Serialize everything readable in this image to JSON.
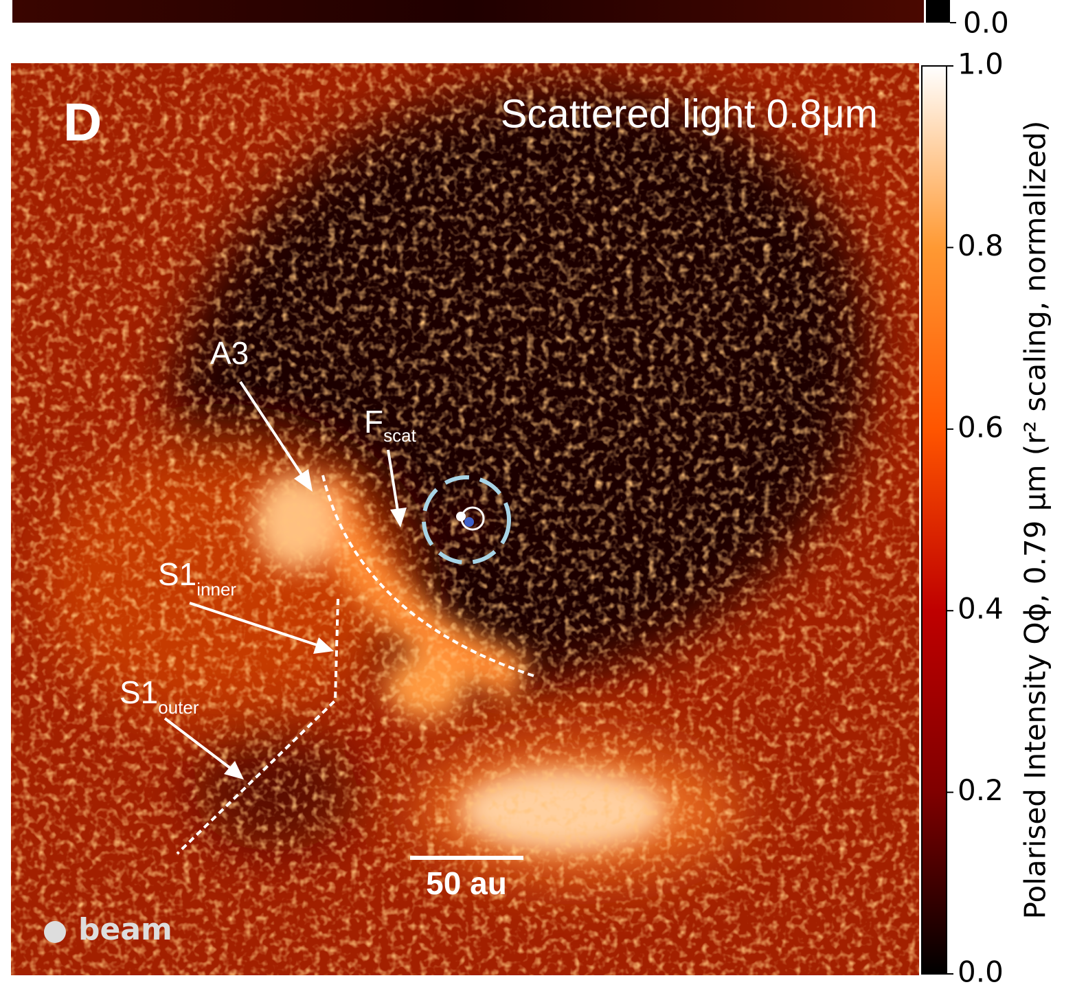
{
  "chart_data": {
    "type": "image",
    "panel_label": "D",
    "title": "Scattered light 0.8μm",
    "colorbar": {
      "label": "Polarised Intensity Qϕ, 0.79 μm (r² scaling, normalized)",
      "ylim": [
        0,
        1
      ],
      "yticks": [
        {
          "value": 0,
          "label": "0.0"
        },
        {
          "value": 0.2,
          "label": "0.2"
        },
        {
          "value": 0.4,
          "label": "0.4"
        },
        {
          "value": 0.6,
          "label": "0.6"
        },
        {
          "value": 0.8,
          "label": "0.8"
        },
        {
          "value": 1,
          "label": "1.0"
        }
      ],
      "colormap": [
        "#000000",
        "#800000",
        "#bf0000",
        "#ff5500",
        "#ff9933",
        "#ffffff"
      ]
    },
    "annotations": [
      {
        "text": "A3"
      },
      {
        "text": "F",
        "sub": "scat"
      },
      {
        "text": "S1",
        "sub": "inner"
      },
      {
        "text": "S1",
        "sub": "outer"
      }
    ],
    "scale_bar": "50 au",
    "beam": "beam",
    "top_panel": {
      "colorbar_tick": {
        "value": 0,
        "label": "0.0"
      }
    }
  }
}
